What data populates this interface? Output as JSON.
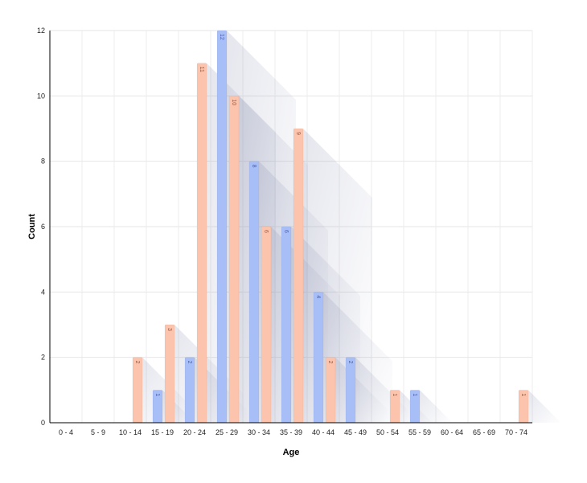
{
  "chart_data": {
    "type": "bar",
    "title": "",
    "xlabel": "Age",
    "ylabel": "Count",
    "ylim": [
      0,
      12
    ],
    "yticks": [
      0,
      2,
      4,
      6,
      8,
      10,
      12
    ],
    "grid": true,
    "categories": [
      "0 - 4",
      "5 - 9",
      "10 - 14",
      "15 - 19",
      "20 - 24",
      "25 - 29",
      "30 - 34",
      "35 - 39",
      "40 - 44",
      "45 - 49",
      "50 - 54",
      "55 - 59",
      "60 - 64",
      "65 - 69",
      "70 - 74"
    ],
    "series": [
      {
        "color": "#a8bef7",
        "label_color": "#4a5fae",
        "values": [
          0,
          0,
          0,
          1,
          2,
          12,
          8,
          6,
          4,
          2,
          0,
          1,
          0,
          0,
          0
        ]
      },
      {
        "color": "#fcc4ad",
        "label_color": "#a0553c",
        "values": [
          0,
          0,
          2,
          3,
          11,
          10,
          6,
          9,
          2,
          0,
          1,
          0,
          0,
          0,
          1
        ]
      }
    ]
  }
}
